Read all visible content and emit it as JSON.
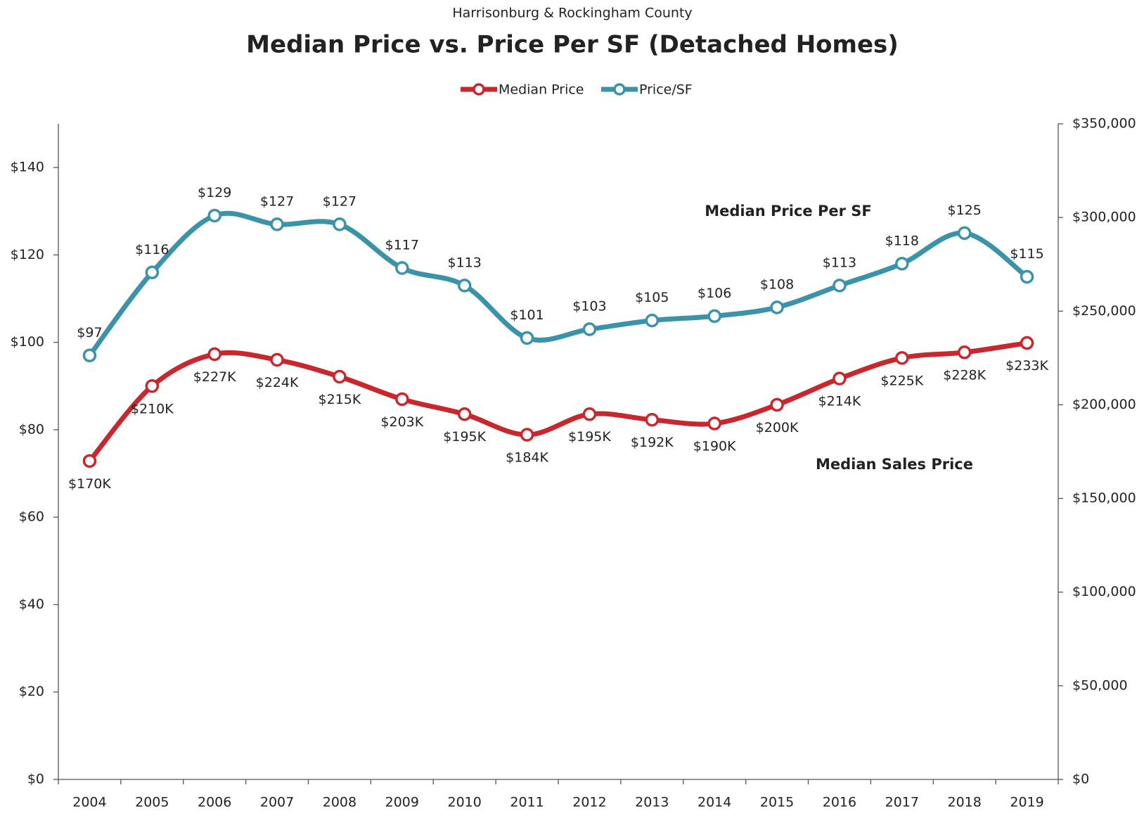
{
  "chart_data": {
    "type": "line",
    "subtitle": "Harrisonburg & Rockingham County",
    "title": "Median Price vs. Price Per SF (Detached Homes)",
    "categories": [
      "2004",
      "2005",
      "2006",
      "2007",
      "2008",
      "2009",
      "2010",
      "2011",
      "2012",
      "2013",
      "2014",
      "2015",
      "2016",
      "2017",
      "2018",
      "2019"
    ],
    "series": [
      {
        "name": "Median Price",
        "color": "#c8282d",
        "axis": "y2",
        "values": [
          170000,
          210000,
          227000,
          224000,
          215000,
          203000,
          195000,
          184000,
          195000,
          192000,
          190000,
          200000,
          214000,
          225000,
          228000,
          233000
        ],
        "value_labels": [
          "$170K",
          "$210K",
          "$227K",
          "$224K",
          "$215K",
          "$203K",
          "$195K",
          "$184K",
          "$195K",
          "$192K",
          "$190K",
          "$200K",
          "$214K",
          "$225K",
          "$228K",
          "$233K"
        ]
      },
      {
        "name": "Price/SF",
        "color": "#3a93a8",
        "values": [
          97,
          116,
          129,
          127,
          127,
          117,
          113,
          101,
          103,
          105,
          106,
          108,
          113,
          118,
          125,
          115
        ],
        "value_labels": [
          "$97",
          "$116",
          "$129",
          "$127",
          "$127",
          "$117",
          "$113",
          "$101",
          "$103",
          "$105",
          "$106",
          "$108",
          "$113",
          "$118",
          "$125",
          "$115"
        ]
      }
    ],
    "ylim": [
      0,
      150
    ],
    "yticks": [
      {
        "value": 0,
        "label": "$0"
      },
      {
        "value": 20,
        "label": "$20"
      },
      {
        "value": 40,
        "label": "$40"
      },
      {
        "value": 60,
        "label": "$60"
      },
      {
        "value": 80,
        "label": "$80"
      },
      {
        "value": 100,
        "label": "$100"
      },
      {
        "value": 120,
        "label": "$120"
      },
      {
        "value": 140,
        "label": "$140"
      }
    ],
    "y2lim": [
      0,
      350000
    ],
    "y2ticks": [
      {
        "value": 0,
        "label": "$0"
      },
      {
        "value": 50000,
        "label": "$50,000"
      },
      {
        "value": 100000,
        "label": "$100,000"
      },
      {
        "value": 150000,
        "label": "$150,000"
      },
      {
        "value": 200000,
        "label": "$200,000"
      },
      {
        "value": 250000,
        "label": "$250,000"
      },
      {
        "value": 300000,
        "label": "$300,000"
      },
      {
        "value": 350000,
        "label": "$350,000"
      }
    ],
    "annotations": [
      {
        "text": "Median Price Per SF",
        "color": "#3a93a8"
      },
      {
        "text": "Median Sales Price",
        "color": "#c8282d"
      }
    ],
    "legend": "top"
  }
}
